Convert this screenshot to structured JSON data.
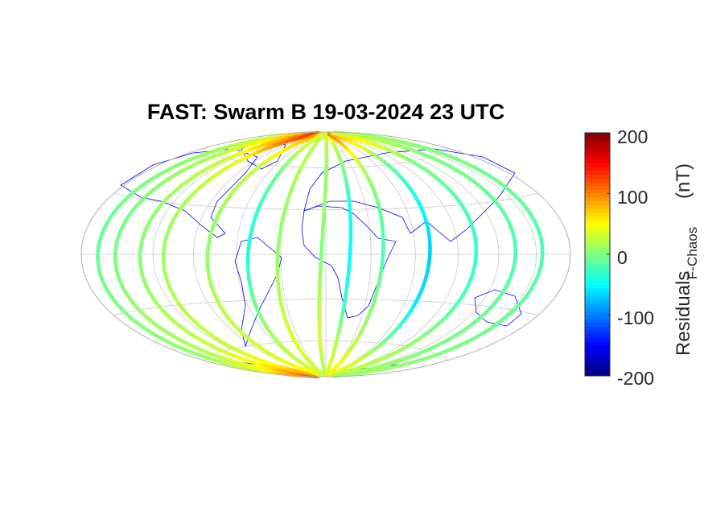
{
  "title": "FAST: Swarm B 19-03-2024 23 UTC",
  "chart_data": {
    "type": "map",
    "projection": "hammer",
    "grid": true,
    "graticule": {
      "parallels_deg": [
        -60,
        -30,
        0,
        30,
        60
      ],
      "meridians_deg": [
        -150,
        -120,
        -90,
        -60,
        -30,
        0,
        30,
        60,
        90,
        120,
        150
      ]
    },
    "colorbar": {
      "colormap": "jet",
      "range": [
        -200,
        200
      ],
      "ticks": [
        "200",
        "100",
        "0",
        "-100",
        "-200"
      ],
      "label": "Residuals",
      "label_subscript": "F-Chaos",
      "label_unit": "(nT)",
      "placement": "right"
    },
    "coastline_color": "#0000ff",
    "tracks_lat_samples": [
      -88,
      -75,
      -60,
      -30,
      0,
      30,
      60,
      75,
      88
    ],
    "tracks": [
      {
        "equator_lon": -165,
        "residual": [
          110,
          40,
          10,
          0,
          -10,
          -5,
          10,
          30,
          60
        ]
      },
      {
        "equator_lon": -150,
        "residual": [
          120,
          50,
          20,
          10,
          -5,
          0,
          20,
          60,
          90
        ]
      },
      {
        "equator_lon": -130,
        "residual": [
          130,
          60,
          30,
          15,
          0,
          10,
          30,
          80,
          120
        ]
      },
      {
        "equator_lon": -112,
        "residual": [
          100,
          50,
          30,
          20,
          10,
          15,
          40,
          100,
          140
        ]
      },
      {
        "equator_lon": -80,
        "residual": [
          60,
          40,
          30,
          20,
          5,
          10,
          30,
          60,
          90
        ]
      },
      {
        "equator_lon": -52,
        "residual": [
          40,
          30,
          20,
          -10,
          -40,
          -30,
          0,
          30,
          40
        ]
      },
      {
        "equator_lon": -32,
        "residual": [
          30,
          30,
          40,
          20,
          10,
          10,
          20,
          20,
          30
        ]
      },
      {
        "equator_lon": -3,
        "residual": [
          20,
          20,
          30,
          20,
          0,
          10,
          10,
          20,
          30
        ]
      },
      {
        "equator_lon": 16,
        "residual": [
          40,
          30,
          20,
          -30,
          -50,
          -40,
          0,
          20,
          60
        ]
      },
      {
        "equator_lon": 38,
        "residual": [
          60,
          40,
          20,
          0,
          -20,
          -10,
          20,
          60,
          110
        ]
      },
      {
        "equator_lon": 70,
        "residual": [
          50,
          30,
          0,
          -60,
          -70,
          -50,
          -10,
          40,
          90
        ]
      },
      {
        "equator_lon": 103,
        "residual": [
          30,
          20,
          10,
          -20,
          -30,
          -20,
          0,
          40,
          70
        ]
      },
      {
        "equator_lon": 133,
        "residual": [
          20,
          10,
          0,
          -10,
          -20,
          -10,
          0,
          20,
          40
        ]
      },
      {
        "equator_lon": 155,
        "residual": [
          10,
          10,
          0,
          -10,
          -20,
          -10,
          0,
          10,
          30
        ]
      }
    ]
  }
}
